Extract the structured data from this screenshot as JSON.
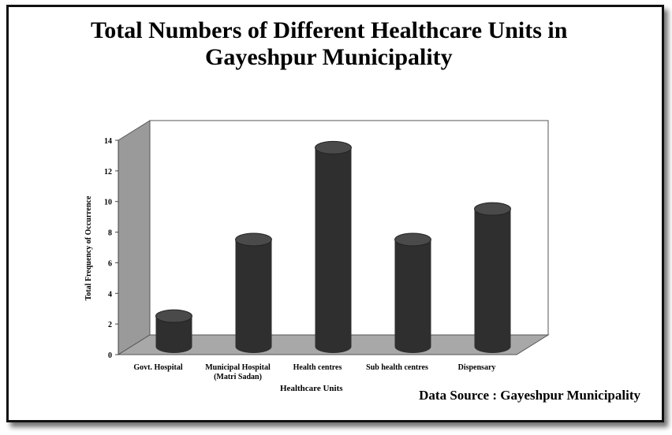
{
  "title_line1": "Total Numbers of Different Healthcare Units in",
  "title_line2": "Gayeshpur Municipality",
  "source": "Data Source : Gayeshpur Municipality",
  "chart_data": {
    "type": "bar",
    "categories": [
      "Govt. Hospital",
      "Municipal Hospital (Matri Sadan)",
      "Health centres",
      "Sub health centres",
      "Dispensary"
    ],
    "category_lines": [
      [
        "Govt. Hospital"
      ],
      [
        "Municipal Hospital",
        "(Matri Sadan)"
      ],
      [
        "Health centres"
      ],
      [
        "Sub health centres"
      ],
      [
        "Dispensary"
      ]
    ],
    "values": [
      2,
      7,
      13,
      7,
      9
    ],
    "xlabel": "Healthcare Units",
    "ylabel": "Total Frequency of Occurrence",
    "ylim": [
      0,
      14
    ],
    "yticks": [
      0,
      2,
      4,
      6,
      8,
      10,
      12,
      14
    ],
    "colors": {
      "bar": "#2f2f2f",
      "wall": "#9a9a9a",
      "floor": "#a8a8a8",
      "back": "#ffffff"
    }
  }
}
